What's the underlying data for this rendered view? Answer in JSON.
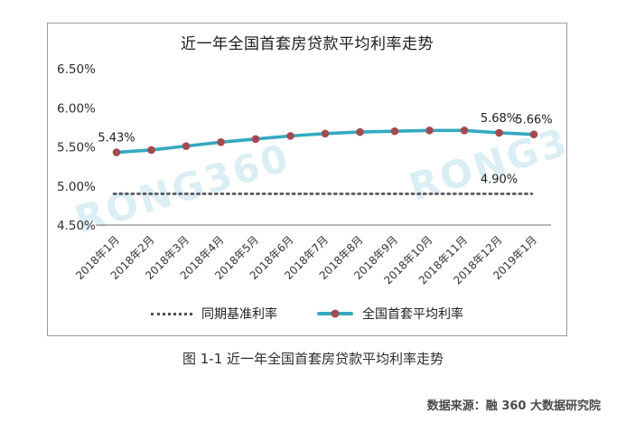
{
  "watermark": {
    "text": "RONG360"
  },
  "chart_data": {
    "type": "line",
    "title": "近一年全国首套房贷款平均利率走势",
    "x": [
      "2018年1月",
      "2018年2月",
      "2018年3月",
      "2018年4月",
      "2018年5月",
      "2018年6月",
      "2018年7月",
      "2018年8月",
      "2018年9月",
      "2018年10月",
      "2018年11月",
      "2018年12月",
      "2019年1月"
    ],
    "y_axis": {
      "tick_labels": [
        "6.50%",
        "6.00%",
        "5.50%",
        "5.00%",
        "4.50%"
      ],
      "tick_values": [
        6.5,
        6.0,
        5.5,
        5.0,
        4.5
      ],
      "range": [
        4.5,
        6.5
      ]
    },
    "series": [
      {
        "name": "同期基准利率",
        "line_style": "dotted",
        "color": "#50505c",
        "values": [
          4.9,
          4.9,
          4.9,
          4.9,
          4.9,
          4.9,
          4.9,
          4.9,
          4.9,
          4.9,
          4.9,
          4.9,
          4.9
        ]
      },
      {
        "name": "全国首套平均利率",
        "line_style": "solid",
        "color": "#35a9c0",
        "marker_color": "#a34a4f",
        "values": [
          5.43,
          5.46,
          5.51,
          5.56,
          5.6,
          5.64,
          5.67,
          5.69,
          5.7,
          5.71,
          5.71,
          5.68,
          5.66
        ]
      }
    ],
    "annotations": [
      {
        "text": "5.43%",
        "series_index": 1,
        "point_index": 0
      },
      {
        "text": "5.68%",
        "series_index": 1,
        "point_index": 11
      },
      {
        "text": "5.66%",
        "series_index": 1,
        "point_index": 12
      },
      {
        "text": "4.90%",
        "series_index": 0,
        "point_index": 11
      }
    ],
    "legend_position": "bottom",
    "grid": false
  },
  "caption": "图 1-1 近一年全国首套房贷款平均利率走势",
  "source": "数据来源：融 360 大数据研究院"
}
